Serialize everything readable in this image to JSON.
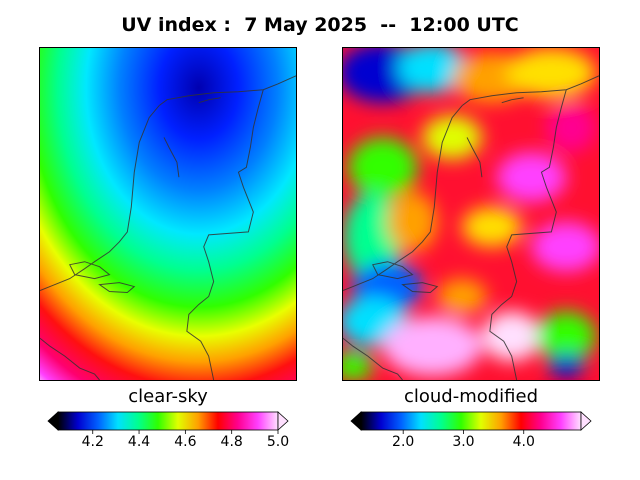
{
  "title": "UV index :  7 May 2025  --  12:00 UTC",
  "panels": [
    {
      "label": "clear-sky"
    },
    {
      "label": "cloud-modified"
    }
  ],
  "colorbars": [
    {
      "min": 4.05,
      "max": 5.0,
      "ticks": [
        4.2,
        4.4,
        4.6,
        4.8,
        5.0
      ],
      "tick_labels": [
        "4.2",
        "4.4",
        "4.6",
        "4.8",
        "5.0"
      ],
      "extend": "both"
    },
    {
      "min": 1.3,
      "max": 4.95,
      "ticks": [
        2.0,
        3.0,
        4.0
      ],
      "tick_labels": [
        "2.0",
        "3.0",
        "4.0"
      ],
      "extend": "both"
    }
  ],
  "colormap": [
    "#000000",
    "#0000d0",
    "#0060ff",
    "#00e0ff",
    "#00ff90",
    "#30ff00",
    "#e0ff00",
    "#ffa000",
    "#ff0000",
    "#ff0090",
    "#ff40ff",
    "#ffe0ff"
  ],
  "coastline_color": "#333333"
}
